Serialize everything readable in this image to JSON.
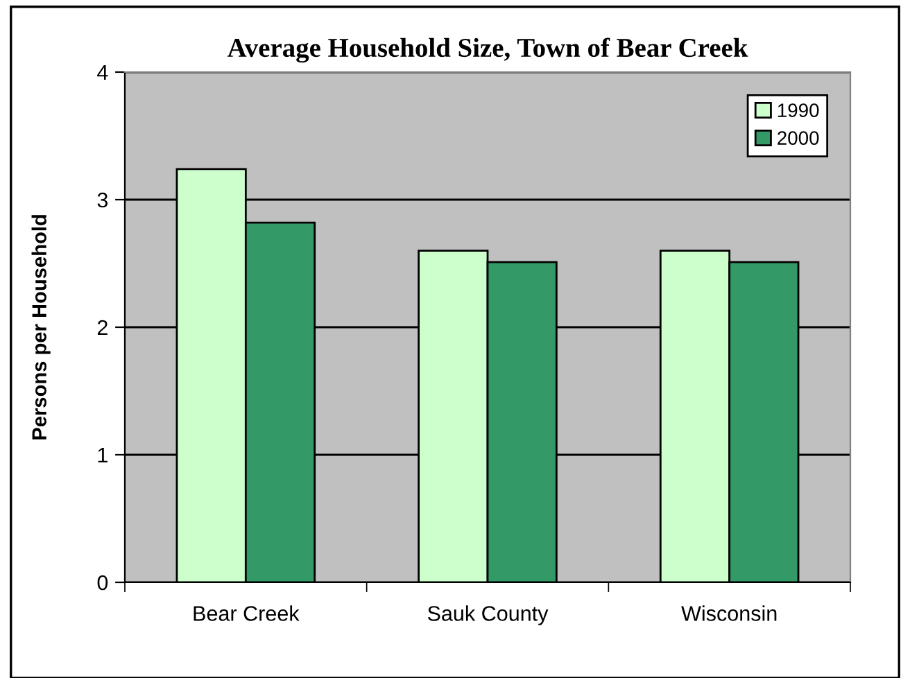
{
  "chart_data": {
    "type": "bar",
    "title": "Average Household Size, Town of Bear Creek",
    "ylabel": "Persons per Household",
    "categories": [
      "Bear Creek",
      "Sauk County",
      "Wisconsin"
    ],
    "series": [
      {
        "name": "1990",
        "color": "#ccffcc",
        "values": [
          3.24,
          2.6,
          2.6
        ]
      },
      {
        "name": "2000",
        "color": "#339966",
        "values": [
          2.82,
          2.51,
          2.51
        ]
      }
    ],
    "ylim": [
      0,
      4
    ],
    "yticks": [
      0,
      1,
      2,
      3,
      4
    ],
    "grid": "y",
    "legend": "top right"
  }
}
